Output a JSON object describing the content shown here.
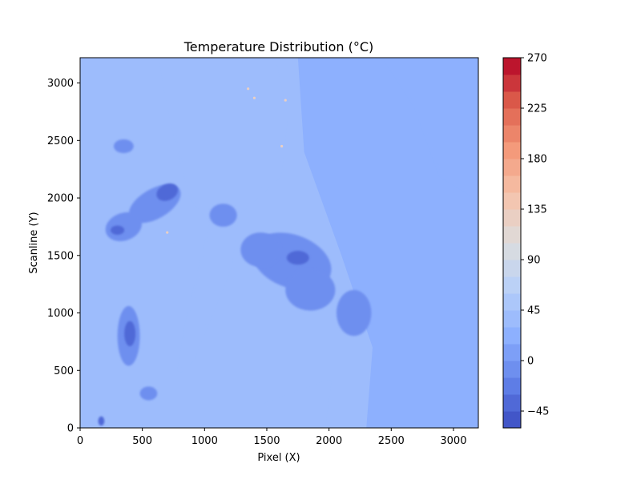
{
  "chart_data": {
    "type": "heatmap",
    "title": "Temperature Distribution (°C)",
    "xlabel": "Pixel (X)",
    "ylabel": "Scanline (Y)",
    "xlim": [
      0,
      3200
    ],
    "ylim": [
      0,
      3220
    ],
    "xticks": [
      0,
      500,
      1000,
      1500,
      2000,
      2500,
      3000
    ],
    "yticks": [
      0,
      500,
      1000,
      1500,
      2000,
      2500,
      3000
    ],
    "colormap": "coolwarm",
    "colorbar": {
      "min": -60,
      "max": 270,
      "step": 15,
      "ticks": [
        -45,
        0,
        45,
        90,
        135,
        180,
        225,
        270
      ]
    },
    "field": {
      "background_temperature": 30,
      "east_temperature": 22,
      "warm_band_temperature": 42,
      "cold_cloud_temperature": -15,
      "very_cold_temperature": -40,
      "hot_spot_temperature": 130
    },
    "grid": false,
    "legend": "colorbar-right"
  }
}
